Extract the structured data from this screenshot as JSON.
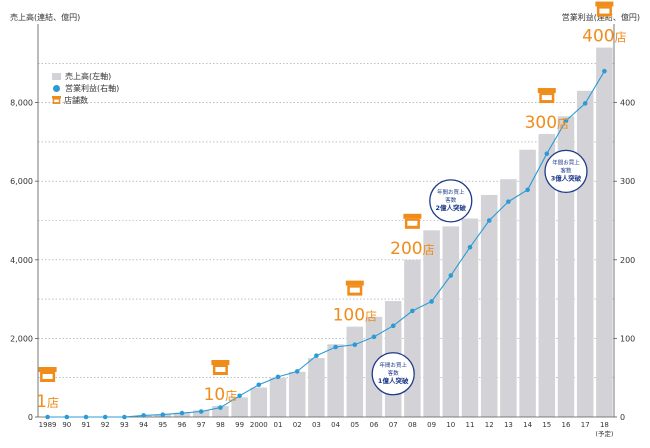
{
  "chart_data": {
    "type": "bar+line",
    "y_left_label": "売上高(連結、億円)",
    "y_right_label": "営業利益(連結、億円)",
    "ylim_left": [
      0,
      10000
    ],
    "ylim_right": [
      0,
      500
    ],
    "left_ticks": [
      "0",
      "2,000",
      "4,000",
      "6,000",
      "8,000"
    ],
    "right_ticks": [
      "0",
      "100",
      "200",
      "300",
      "400"
    ],
    "categories": [
      "1989",
      "90",
      "91",
      "92",
      "93",
      "94",
      "95",
      "96",
      "97",
      "98",
      "99",
      "2000",
      "01",
      "02",
      "03",
      "04",
      "05",
      "06",
      "07",
      "08",
      "09",
      "10",
      "11",
      "12",
      "13",
      "14",
      "15",
      "16",
      "17",
      "18"
    ],
    "category_sublabel": {
      "index": 29,
      "text": "(予定)"
    },
    "legend": [
      "売上高(左軸)",
      "営業利益(右軸)",
      "店舗数"
    ],
    "series": [
      {
        "name": "売上高(左軸)",
        "kind": "bar",
        "axis": "left",
        "color": "#d3d2d7",
        "values": [
          0,
          0,
          0,
          0,
          10,
          30,
          60,
          110,
          170,
          280,
          500,
          750,
          1000,
          1150,
          1500,
          1850,
          2300,
          2550,
          2950,
          4000,
          4750,
          4850,
          5050,
          5650,
          6050,
          6800,
          7200,
          7650,
          8300,
          9400
        ]
      },
      {
        "name": "営業利益(右軸)",
        "kind": "line",
        "axis": "right",
        "color": "#2b9bd6",
        "values": [
          0,
          0,
          0,
          0,
          0,
          2,
          3,
          5,
          7,
          12,
          27,
          41,
          51,
          58,
          78,
          89,
          92,
          102,
          116,
          135,
          147,
          180,
          216,
          250,
          274,
          289,
          335,
          377,
          399,
          440
        ]
      }
    ],
    "store_markers": [
      {
        "index": 0,
        "label": "1店",
        "value_left": 0
      },
      {
        "index": 9,
        "label": "10店",
        "value_left": 280
      },
      {
        "index": 16,
        "label": "100店",
        "value_left": 2300
      },
      {
        "index": 19,
        "label": "200店",
        "value_left": 4000
      },
      {
        "index": 26,
        "label": "300店",
        "value_left": 7200
      },
      {
        "index": 29,
        "label": "400店",
        "value_left": 9400
      }
    ],
    "annotations": [
      {
        "lines": [
          "年間お買上",
          "客数",
          "1億人突破"
        ],
        "index": 18,
        "value_left": 1100
      },
      {
        "lines": [
          "年間お買上",
          "客数",
          "2億人突破"
        ],
        "index": 21,
        "value_left": 5500
      },
      {
        "lines": [
          "年間お買上",
          "客数",
          "3億人突破"
        ],
        "index": 27,
        "value_left": 6250
      }
    ],
    "colors": {
      "bar": "#d3d2d7",
      "line": "#2b9bd6",
      "store": "#f08c1a",
      "annotation_border": "#1e3a8a",
      "annotation_text": "#1e3a8a"
    }
  }
}
